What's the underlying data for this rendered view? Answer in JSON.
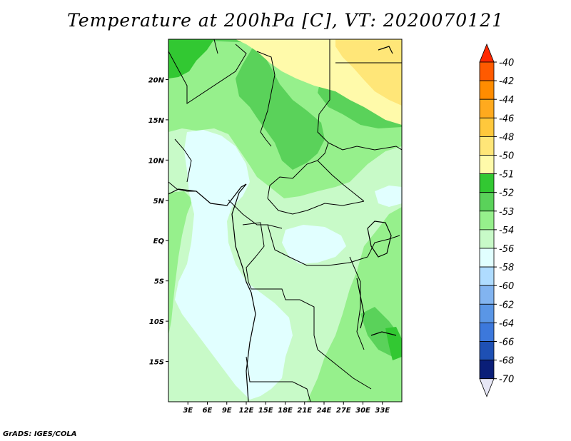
{
  "title": "Temperature at 200hPa [C], VT: 2020070121",
  "footer": "GrADS: IGES/COLA",
  "map": {
    "lon_range": [
      0,
      36
    ],
    "lat_range": [
      -20,
      25
    ],
    "x_ticks": [
      "3E",
      "6E",
      "9E",
      "12E",
      "15E",
      "18E",
      "21E",
      "24E",
      "27E",
      "30E",
      "33E"
    ],
    "x_tick_values": [
      3,
      6,
      9,
      12,
      15,
      18,
      21,
      24,
      27,
      30,
      33
    ],
    "y_ticks": [
      "20N",
      "15N",
      "10N",
      "5N",
      "EQ",
      "5S",
      "10S",
      "15S"
    ],
    "y_tick_values": [
      20,
      15,
      10,
      5,
      0,
      -5,
      -10,
      -15
    ]
  },
  "colorbar": {
    "labels": [
      "-40",
      "-42",
      "-44",
      "-46",
      "-48",
      "-50",
      "-51",
      "-52",
      "-53",
      "-54",
      "-56",
      "-58",
      "-60",
      "-62",
      "-64",
      "-66",
      "-68",
      "-70"
    ],
    "colors": [
      "#ff2800",
      "#ff5a00",
      "#ff8c00",
      "#ffaa1e",
      "#ffc83c",
      "#ffe678",
      "#fffaaa",
      "#32c832",
      "#5ad25a",
      "#96f08c",
      "#c8fac8",
      "#e1ffff",
      "#afdcff",
      "#82b4f0",
      "#5a96e6",
      "#3c78dc",
      "#1e50b4",
      "#0a1e78",
      "#e6e6f5"
    ]
  }
}
